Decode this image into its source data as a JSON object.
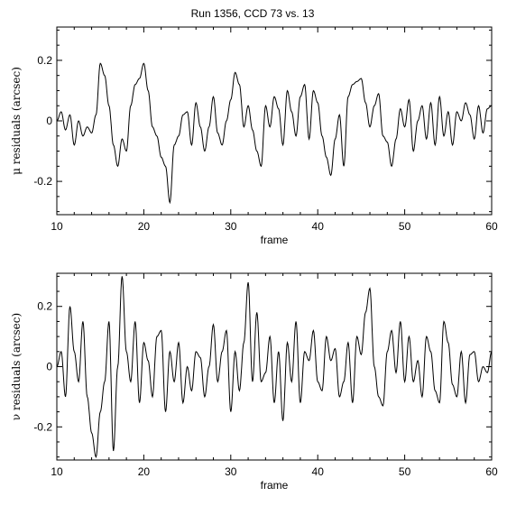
{
  "title": "Run 1356, CCD 73 vs. 13",
  "chart_data": [
    {
      "type": "line",
      "title": "Run 1356, CCD 73 vs. 13",
      "xlabel": "frame",
      "ylabel": "μ residuals (arcsec)",
      "xlim": [
        10,
        60
      ],
      "ylim": [
        -0.31,
        0.31
      ],
      "xticks": [
        10,
        20,
        30,
        40,
        50,
        60
      ],
      "yticks": [
        -0.2,
        0,
        0.2
      ],
      "xtick_labels": [
        "10",
        "20",
        "30",
        "40",
        "50",
        "60"
      ],
      "ytick_labels": [
        "-0.2",
        "0",
        "0.2"
      ],
      "series": [
        {
          "kind": "line",
          "x": [
            10.0,
            10.5,
            11.0,
            11.5,
            12.0,
            12.5,
            13.0,
            13.5,
            14.0,
            14.5,
            15.0,
            15.5,
            16.0,
            16.5,
            17.0,
            17.5,
            18.0,
            18.5,
            19.0,
            19.5,
            20.0,
            20.5,
            21.0,
            21.5,
            22.0,
            22.5,
            23.0,
            23.5,
            24.0,
            24.5,
            25.0,
            25.5,
            26.0,
            26.5,
            27.0,
            27.5,
            28.0,
            28.5,
            29.0,
            29.5,
            30.0,
            30.5,
            31.0,
            31.5,
            32.0,
            32.5,
            33.0,
            33.5,
            34.0,
            34.5,
            35.0,
            35.5,
            36.0,
            36.5,
            37.0,
            37.5,
            38.0,
            38.5,
            39.0,
            39.5,
            40.0,
            40.5,
            41.0,
            41.5,
            42.0,
            42.5,
            43.0,
            43.5,
            44.0,
            44.5,
            45.0,
            45.5,
            46.0,
            46.5,
            47.0,
            47.5,
            48.0,
            48.5,
            49.0,
            49.5,
            50.0,
            50.5,
            51.0,
            51.5,
            52.0,
            52.5,
            53.0,
            53.5,
            54.0,
            54.5,
            55.0,
            55.5,
            56.0,
            56.5,
            57.0,
            57.5,
            58.0,
            58.5,
            59.0,
            59.5,
            60.0
          ],
          "y": [
            0.0,
            0.03,
            -0.03,
            0.02,
            -0.08,
            0.0,
            -0.05,
            -0.02,
            -0.04,
            0.02,
            0.19,
            0.15,
            0.05,
            -0.08,
            -0.15,
            -0.06,
            -0.1,
            0.05,
            0.12,
            0.14,
            0.19,
            0.1,
            -0.02,
            -0.05,
            -0.12,
            -0.15,
            -0.27,
            -0.08,
            -0.05,
            0.02,
            0.03,
            -0.08,
            0.06,
            -0.02,
            -0.1,
            -0.02,
            0.08,
            -0.04,
            -0.08,
            0.0,
            0.07,
            0.16,
            0.12,
            -0.02,
            0.05,
            -0.03,
            -0.1,
            -0.15,
            0.05,
            -0.02,
            0.08,
            0.04,
            -0.08,
            0.1,
            0.03,
            -0.05,
            0.08,
            0.12,
            -0.06,
            0.1,
            0.06,
            -0.05,
            -0.12,
            -0.18,
            -0.06,
            0.02,
            -0.15,
            0.08,
            0.12,
            0.13,
            0.14,
            0.06,
            -0.02,
            0.05,
            0.09,
            -0.05,
            -0.07,
            -0.15,
            -0.06,
            0.04,
            -0.02,
            0.07,
            -0.1,
            0.0,
            0.05,
            -0.06,
            0.06,
            -0.08,
            0.08,
            -0.05,
            0.03,
            -0.08,
            0.03,
            0.0,
            0.06,
            0.02,
            -0.06,
            0.05,
            -0.04,
            0.04,
            0.05
          ]
        }
      ]
    },
    {
      "type": "line",
      "xlabel": "frame",
      "ylabel": "ν residuals (arcsec)",
      "xlim": [
        10,
        60
      ],
      "ylim": [
        -0.31,
        0.31
      ],
      "xticks": [
        10,
        20,
        30,
        40,
        50,
        60
      ],
      "yticks": [
        -0.2,
        0,
        0.2
      ],
      "xtick_labels": [
        "10",
        "20",
        "30",
        "40",
        "50",
        "60"
      ],
      "ytick_labels": [
        "-0.2",
        "0",
        "0.2"
      ],
      "series": [
        {
          "kind": "line",
          "x": [
            10.0,
            10.5,
            11.0,
            11.5,
            12.0,
            12.5,
            13.0,
            13.5,
            14.0,
            14.5,
            15.0,
            15.5,
            16.0,
            16.5,
            17.0,
            17.5,
            18.0,
            18.5,
            19.0,
            19.5,
            20.0,
            20.5,
            21.0,
            21.5,
            22.0,
            22.5,
            23.0,
            23.5,
            24.0,
            24.5,
            25.0,
            25.5,
            26.0,
            26.5,
            27.0,
            27.5,
            28.0,
            28.5,
            29.0,
            29.5,
            30.0,
            30.5,
            31.0,
            31.5,
            32.0,
            32.5,
            33.0,
            33.5,
            34.0,
            34.5,
            35.0,
            35.5,
            36.0,
            36.5,
            37.0,
            37.5,
            38.0,
            38.5,
            39.0,
            39.5,
            40.0,
            40.5,
            41.0,
            41.5,
            42.0,
            42.5,
            43.0,
            43.5,
            44.0,
            44.5,
            45.0,
            45.5,
            46.0,
            46.5,
            47.0,
            47.5,
            48.0,
            48.5,
            49.0,
            49.5,
            50.0,
            50.5,
            51.0,
            51.5,
            52.0,
            52.5,
            53.0,
            53.5,
            54.0,
            54.5,
            55.0,
            55.5,
            56.0,
            56.5,
            57.0,
            57.5,
            58.0,
            58.5,
            59.0,
            59.5,
            60.0
          ],
          "y": [
            0.0,
            0.05,
            -0.1,
            0.2,
            0.05,
            -0.05,
            0.15,
            -0.1,
            -0.22,
            -0.3,
            -0.15,
            -0.05,
            0.15,
            -0.28,
            0.0,
            0.3,
            0.05,
            -0.05,
            0.15,
            -0.12,
            0.08,
            0.02,
            -0.1,
            0.1,
            0.12,
            -0.15,
            0.05,
            -0.05,
            0.08,
            -0.12,
            0.0,
            -0.08,
            0.05,
            0.03,
            -0.1,
            0.0,
            0.14,
            -0.05,
            0.05,
            0.12,
            -0.15,
            0.05,
            -0.08,
            0.08,
            0.28,
            -0.05,
            0.18,
            -0.05,
            -0.02,
            0.1,
            -0.12,
            0.05,
            -0.18,
            0.08,
            -0.05,
            0.15,
            -0.12,
            0.05,
            0.02,
            0.12,
            -0.05,
            -0.08,
            0.1,
            0.02,
            0.06,
            -0.1,
            -0.05,
            0.08,
            -0.12,
            0.1,
            0.04,
            0.18,
            0.26,
            0.0,
            -0.1,
            -0.13,
            0.05,
            0.12,
            -0.02,
            0.15,
            -0.05,
            0.1,
            -0.05,
            0.02,
            -0.1,
            0.1,
            0.05,
            -0.08,
            -0.12,
            0.15,
            0.08,
            -0.06,
            -0.1,
            0.05,
            -0.12,
            0.04,
            0.05,
            -0.05,
            0.0,
            -0.02,
            0.05
          ]
        }
      ]
    }
  ]
}
